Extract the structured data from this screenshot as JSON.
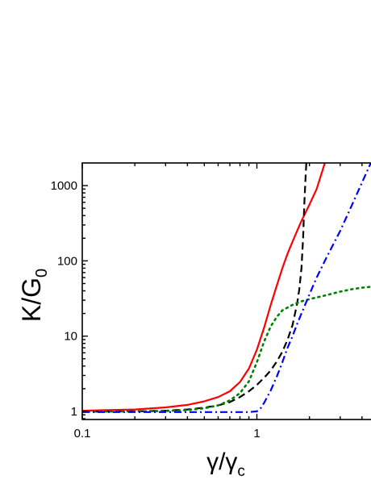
{
  "chart_data": {
    "type": "line",
    "x_scale": "log",
    "y_scale": "log",
    "xlim": [
      0.1,
      4.6
    ],
    "ylim": [
      0.78,
      2000
    ],
    "grid": false,
    "legend": "none",
    "xlabel": {
      "main": "γ/γ",
      "sub": "c"
    },
    "ylabel": {
      "main": "K/G",
      "sub": "0"
    },
    "x_ticks": [
      {
        "value": 0.1,
        "label": "0.1"
      },
      {
        "value": 1,
        "label": "1"
      }
    ],
    "y_ticks": [
      {
        "value": 1,
        "label": "1"
      },
      {
        "value": 10,
        "label": "10"
      },
      {
        "value": 100,
        "label": "100"
      },
      {
        "value": 1000,
        "label": "1000"
      }
    ],
    "series": [
      {
        "color": "#ff0000",
        "dash": "solid",
        "points": [
          [
            0.1,
            1.02
          ],
          [
            0.2,
            1.06
          ],
          [
            0.3,
            1.13
          ],
          [
            0.4,
            1.22
          ],
          [
            0.5,
            1.36
          ],
          [
            0.6,
            1.55
          ],
          [
            0.7,
            1.85
          ],
          [
            0.8,
            2.45
          ],
          [
            0.9,
            3.7
          ],
          [
            1.0,
            6.6
          ],
          [
            1.1,
            13
          ],
          [
            1.2,
            26
          ],
          [
            1.3,
            47
          ],
          [
            1.4,
            80
          ],
          [
            1.5,
            125
          ],
          [
            1.6,
            180
          ],
          [
            1.7,
            250
          ],
          [
            1.8,
            340
          ],
          [
            1.9,
            440
          ],
          [
            2.0,
            560
          ],
          [
            2.2,
            900
          ],
          [
            2.45,
            2000
          ]
        ]
      },
      {
        "color": "#000000",
        "dash": "dashed",
        "points": [
          [
            0.1,
            0.99
          ],
          [
            0.2,
            1.0
          ],
          [
            0.3,
            1.02
          ],
          [
            0.4,
            1.06
          ],
          [
            0.5,
            1.12
          ],
          [
            0.6,
            1.2
          ],
          [
            0.7,
            1.33
          ],
          [
            0.8,
            1.55
          ],
          [
            0.9,
            1.85
          ],
          [
            1.0,
            2.25
          ],
          [
            1.1,
            2.8
          ],
          [
            1.2,
            3.5
          ],
          [
            1.3,
            4.6
          ],
          [
            1.4,
            6.2
          ],
          [
            1.5,
            9
          ],
          [
            1.6,
            14
          ],
          [
            1.7,
            27
          ],
          [
            1.75,
            42
          ],
          [
            1.8,
            80
          ],
          [
            1.84,
            200
          ],
          [
            1.87,
            600
          ],
          [
            1.9,
            1300
          ],
          [
            1.92,
            2000
          ]
        ]
      },
      {
        "color": "#008000",
        "dash": "dotted",
        "points": [
          [
            0.1,
            0.99
          ],
          [
            0.2,
            1.0
          ],
          [
            0.3,
            1.01
          ],
          [
            0.4,
            1.04
          ],
          [
            0.5,
            1.1
          ],
          [
            0.6,
            1.2
          ],
          [
            0.7,
            1.4
          ],
          [
            0.8,
            1.75
          ],
          [
            0.9,
            2.5
          ],
          [
            1.0,
            4.5
          ],
          [
            1.1,
            8.5
          ],
          [
            1.2,
            13.5
          ],
          [
            1.3,
            18
          ],
          [
            1.4,
            22
          ],
          [
            1.6,
            26
          ],
          [
            1.8,
            29
          ],
          [
            2.0,
            31
          ],
          [
            2.5,
            35
          ],
          [
            3.0,
            39
          ],
          [
            3.5,
            42
          ],
          [
            4.0,
            44
          ],
          [
            4.6,
            45.5
          ]
        ]
      },
      {
        "color": "#0000ff",
        "dash": "dashdot",
        "points": [
          [
            0.1,
            0.98
          ],
          [
            0.5,
            0.98
          ],
          [
            0.9,
            0.98
          ],
          [
            1.0,
            1.0
          ],
          [
            1.05,
            1.1
          ],
          [
            1.1,
            1.3
          ],
          [
            1.2,
            1.9
          ],
          [
            1.3,
            2.9
          ],
          [
            1.4,
            4.5
          ],
          [
            1.5,
            7
          ],
          [
            1.6,
            10
          ],
          [
            1.7,
            14.5
          ],
          [
            1.8,
            20
          ],
          [
            2.0,
            36
          ],
          [
            2.2,
            60
          ],
          [
            2.5,
            110
          ],
          [
            3.0,
            250
          ],
          [
            3.5,
            550
          ],
          [
            4.0,
            1100
          ],
          [
            4.4,
            1800
          ],
          [
            4.5,
            2000
          ]
        ]
      }
    ]
  }
}
